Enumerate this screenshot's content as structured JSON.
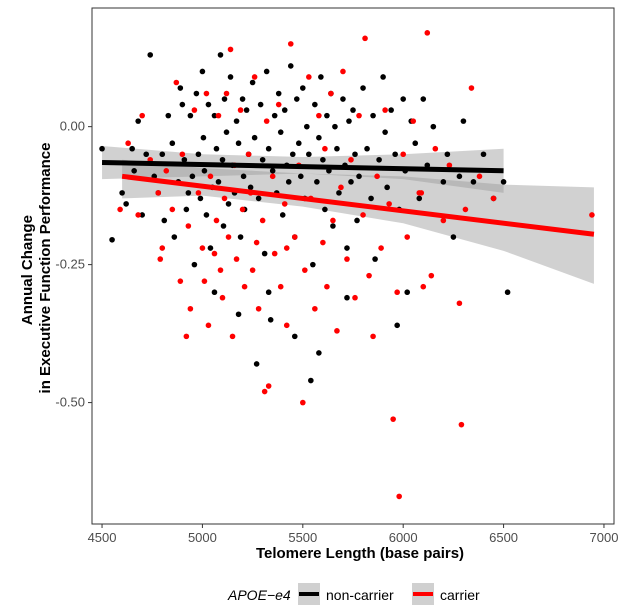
{
  "chart_data": {
    "type": "scatter",
    "xlabel": "Telomere Length (base pairs)",
    "ylabel_lines": [
      "Annual Change",
      "in Executive Function Performance"
    ],
    "xlim": [
      4450,
      7050
    ],
    "ylim": [
      -0.72,
      0.215
    ],
    "x_ticks": [
      4500,
      5000,
      5500,
      6000,
      6500,
      7000
    ],
    "x_tick_labels": [
      "4500",
      "5000",
      "5500",
      "6000",
      "6500",
      "7000"
    ],
    "y_ticks": [
      0.0,
      -0.25,
      -0.5
    ],
    "y_tick_labels": [
      "0.00",
      "-0.25",
      "-0.50"
    ],
    "grid": false,
    "legend": {
      "placement": "bottom",
      "title": "APOE−e4",
      "entries": [
        {
          "label": "non-carrier",
          "color": "#000000"
        },
        {
          "label": "carrier",
          "color": "#ff0000"
        }
      ]
    },
    "series": [
      {
        "name": "non-carrier",
        "color": "#000000",
        "fit": {
          "x": [
            4500,
            6500
          ],
          "y": [
            -0.065,
            -0.08
          ]
        },
        "ci": {
          "x": [
            4500,
            5000,
            5500,
            6000,
            6500
          ],
          "upper": [
            -0.035,
            -0.05,
            -0.055,
            -0.05,
            -0.04
          ],
          "lower": [
            -0.095,
            -0.09,
            -0.085,
            -0.095,
            -0.12
          ]
        },
        "points": [
          [
            4500,
            -0.04
          ],
          [
            4550,
            -0.205
          ],
          [
            4600,
            -0.12
          ],
          [
            4620,
            -0.14
          ],
          [
            4650,
            -0.04
          ],
          [
            4660,
            -0.08
          ],
          [
            4680,
            0.01
          ],
          [
            4700,
            -0.16
          ],
          [
            4720,
            -0.05
          ],
          [
            4740,
            0.13
          ],
          [
            4760,
            -0.09
          ],
          [
            4780,
            -0.12
          ],
          [
            4800,
            -0.05
          ],
          [
            4810,
            -0.17
          ],
          [
            4830,
            0.02
          ],
          [
            4850,
            -0.03
          ],
          [
            4860,
            -0.2
          ],
          [
            4880,
            -0.1
          ],
          [
            4890,
            0.07
          ],
          [
            4900,
            0.04
          ],
          [
            4910,
            -0.06
          ],
          [
            4920,
            -0.15
          ],
          [
            4930,
            -0.12
          ],
          [
            4940,
            0.02
          ],
          [
            4950,
            -0.09
          ],
          [
            4960,
            -0.25
          ],
          [
            4970,
            0.06
          ],
          [
            4980,
            -0.05
          ],
          [
            4990,
            -0.13
          ],
          [
            5000,
            0.1
          ],
          [
            5005,
            -0.02
          ],
          [
            5010,
            -0.08
          ],
          [
            5020,
            -0.16
          ],
          [
            5030,
            0.04
          ],
          [
            5040,
            -0.22
          ],
          [
            5050,
            -0.11
          ],
          [
            5060,
            0.02
          ],
          [
            5070,
            -0.04
          ],
          [
            5080,
            -0.1
          ],
          [
            5090,
            0.13
          ],
          [
            5100,
            -0.06
          ],
          [
            5105,
            -0.18
          ],
          [
            5110,
            0.05
          ],
          [
            5120,
            -0.01
          ],
          [
            5130,
            -0.14
          ],
          [
            5140,
            0.09
          ],
          [
            5150,
            -0.07
          ],
          [
            5160,
            -0.12
          ],
          [
            5170,
            0.01
          ],
          [
            5180,
            -0.03
          ],
          [
            5190,
            -0.2
          ],
          [
            5200,
            0.05
          ],
          [
            5205,
            -0.09
          ],
          [
            5210,
            -0.15
          ],
          [
            5220,
            0.03
          ],
          [
            5230,
            -0.05
          ],
          [
            5240,
            -0.11
          ],
          [
            5250,
            0.08
          ],
          [
            5260,
            -0.02
          ],
          [
            5270,
            -0.43
          ],
          [
            5280,
            -0.13
          ],
          [
            5290,
            0.04
          ],
          [
            5300,
            -0.06
          ],
          [
            5310,
            -0.23
          ],
          [
            5320,
            0.1
          ],
          [
            5330,
            -0.04
          ],
          [
            5340,
            -0.35
          ],
          [
            5350,
            -0.08
          ],
          [
            5360,
            0.02
          ],
          [
            5370,
            -0.12
          ],
          [
            5380,
            0.06
          ],
          [
            5390,
            -0.01
          ],
          [
            5400,
            -0.16
          ],
          [
            5410,
            0.03
          ],
          [
            5420,
            -0.07
          ],
          [
            5430,
            -0.1
          ],
          [
            5440,
            0.11
          ],
          [
            5450,
            -0.05
          ],
          [
            5460,
            -0.2
          ],
          [
            5470,
            0.05
          ],
          [
            5480,
            -0.03
          ],
          [
            5490,
            -0.09
          ],
          [
            5500,
            0.07
          ],
          [
            5510,
            -0.13
          ],
          [
            5520,
            0.0
          ],
          [
            5530,
            -0.05
          ],
          [
            5540,
            -0.46
          ],
          [
            5550,
            -0.25
          ],
          [
            5560,
            0.04
          ],
          [
            5570,
            -0.1
          ],
          [
            5580,
            -0.02
          ],
          [
            5590,
            0.09
          ],
          [
            5600,
            -0.06
          ],
          [
            5610,
            -0.15
          ],
          [
            5620,
            0.02
          ],
          [
            5630,
            -0.08
          ],
          [
            5640,
            0.06
          ],
          [
            5650,
            -0.18
          ],
          [
            5660,
            0.0
          ],
          [
            5670,
            -0.04
          ],
          [
            5680,
            -0.12
          ],
          [
            5700,
            0.05
          ],
          [
            5710,
            -0.07
          ],
          [
            5720,
            -0.22
          ],
          [
            5730,
            0.01
          ],
          [
            5740,
            -0.1
          ],
          [
            5750,
            0.03
          ],
          [
            5760,
            -0.05
          ],
          [
            5770,
            -0.17
          ],
          [
            5780,
            -0.09
          ],
          [
            5800,
            0.07
          ],
          [
            5820,
            -0.04
          ],
          [
            5840,
            -0.13
          ],
          [
            5850,
            0.02
          ],
          [
            5860,
            -0.24
          ],
          [
            5880,
            -0.06
          ],
          [
            5900,
            0.09
          ],
          [
            5910,
            -0.01
          ],
          [
            5920,
            -0.11
          ],
          [
            5940,
            0.03
          ],
          [
            5960,
            -0.05
          ],
          [
            5970,
            -0.36
          ],
          [
            5980,
            -0.15
          ],
          [
            6000,
            0.05
          ],
          [
            6010,
            -0.08
          ],
          [
            6020,
            -0.3
          ],
          [
            6040,
            0.01
          ],
          [
            6060,
            -0.03
          ],
          [
            6080,
            -0.13
          ],
          [
            6100,
            0.05
          ],
          [
            6120,
            -0.07
          ],
          [
            6150,
            0.0
          ],
          [
            6200,
            -0.1
          ],
          [
            6220,
            -0.05
          ],
          [
            6250,
            -0.2
          ],
          [
            6280,
            -0.09
          ],
          [
            6300,
            0.01
          ],
          [
            6350,
            -0.1
          ],
          [
            6400,
            -0.05
          ],
          [
            6450,
            -0.13
          ],
          [
            6500,
            -0.1
          ],
          [
            6520,
            -0.3
          ],
          [
            5060,
            -0.3
          ],
          [
            5180,
            -0.34
          ],
          [
            5330,
            -0.3
          ],
          [
            5460,
            -0.38
          ],
          [
            5580,
            -0.41
          ],
          [
            5720,
            -0.31
          ]
        ]
      },
      {
        "name": "carrier",
        "color": "#ff0000",
        "fit": {
          "x": [
            4600,
            6950
          ],
          "y": [
            -0.09,
            -0.195
          ]
        },
        "ci": {
          "x": [
            4600,
            5000,
            5500,
            6000,
            6500,
            6950
          ],
          "upper": [
            -0.06,
            -0.075,
            -0.085,
            -0.09,
            -0.105,
            -0.11
          ],
          "lower": [
            -0.13,
            -0.125,
            -0.145,
            -0.175,
            -0.225,
            -0.285
          ]
        },
        "points": [
          [
            4590,
            -0.15
          ],
          [
            4630,
            -0.03
          ],
          [
            4680,
            -0.16
          ],
          [
            4700,
            0.02
          ],
          [
            4740,
            -0.06
          ],
          [
            4780,
            -0.12
          ],
          [
            4790,
            -0.24
          ],
          [
            4800,
            -0.22
          ],
          [
            4820,
            -0.08
          ],
          [
            4850,
            -0.15
          ],
          [
            4870,
            0.08
          ],
          [
            4890,
            -0.28
          ],
          [
            4900,
            -0.05
          ],
          [
            4920,
            -0.38
          ],
          [
            4930,
            -0.18
          ],
          [
            4940,
            -0.33
          ],
          [
            4960,
            0.03
          ],
          [
            4980,
            -0.12
          ],
          [
            5000,
            -0.22
          ],
          [
            5010,
            -0.28
          ],
          [
            5020,
            0.06
          ],
          [
            5030,
            -0.36
          ],
          [
            5040,
            -0.09
          ],
          [
            5060,
            -0.23
          ],
          [
            5070,
            -0.17
          ],
          [
            5080,
            0.02
          ],
          [
            5090,
            -0.26
          ],
          [
            5100,
            -0.31
          ],
          [
            5110,
            -0.13
          ],
          [
            5120,
            0.06
          ],
          [
            5130,
            -0.2
          ],
          [
            5140,
            0.14
          ],
          [
            5150,
            -0.38
          ],
          [
            5160,
            -0.07
          ],
          [
            5170,
            -0.24
          ],
          [
            5190,
            0.03
          ],
          [
            5200,
            -0.15
          ],
          [
            5210,
            -0.29
          ],
          [
            5230,
            -0.05
          ],
          [
            5240,
            -0.12
          ],
          [
            5250,
            -0.26
          ],
          [
            5260,
            0.09
          ],
          [
            5270,
            -0.21
          ],
          [
            5280,
            -0.33
          ],
          [
            5300,
            -0.17
          ],
          [
            5310,
            -0.48
          ],
          [
            5320,
            0.01
          ],
          [
            5330,
            -0.47
          ],
          [
            5350,
            -0.09
          ],
          [
            5360,
            -0.23
          ],
          [
            5380,
            0.04
          ],
          [
            5390,
            -0.29
          ],
          [
            5410,
            -0.14
          ],
          [
            5420,
            -0.36
          ],
          [
            5440,
            0.15
          ],
          [
            5460,
            -0.2
          ],
          [
            5480,
            -0.07
          ],
          [
            5500,
            -0.5
          ],
          [
            5510,
            -0.26
          ],
          [
            5530,
            0.09
          ],
          [
            5540,
            -0.13
          ],
          [
            5560,
            -0.33
          ],
          [
            5580,
            0.02
          ],
          [
            5600,
            -0.21
          ],
          [
            5610,
            -0.04
          ],
          [
            5620,
            -0.29
          ],
          [
            5640,
            0.06
          ],
          [
            5650,
            -0.17
          ],
          [
            5670,
            -0.37
          ],
          [
            5690,
            -0.11
          ],
          [
            5700,
            0.1
          ],
          [
            5720,
            -0.24
          ],
          [
            5740,
            -0.06
          ],
          [
            5760,
            -0.31
          ],
          [
            5780,
            0.02
          ],
          [
            5800,
            -0.16
          ],
          [
            5810,
            0.16
          ],
          [
            5830,
            -0.27
          ],
          [
            5850,
            -0.38
          ],
          [
            5870,
            -0.09
          ],
          [
            5890,
            -0.22
          ],
          [
            5910,
            0.03
          ],
          [
            5930,
            -0.14
          ],
          [
            5950,
            -0.53
          ],
          [
            5970,
            -0.3
          ],
          [
            5980,
            -0.67
          ],
          [
            6000,
            -0.05
          ],
          [
            6020,
            -0.2
          ],
          [
            6050,
            0.01
          ],
          [
            6080,
            -0.12
          ],
          [
            6100,
            -0.29
          ],
          [
            6120,
            0.17
          ],
          [
            6140,
            -0.27
          ],
          [
            6160,
            -0.04
          ],
          [
            6200,
            -0.17
          ],
          [
            6230,
            -0.07
          ],
          [
            6280,
            -0.32
          ],
          [
            6290,
            -0.54
          ],
          [
            6310,
            -0.15
          ],
          [
            6340,
            0.07
          ],
          [
            6380,
            -0.09
          ],
          [
            6450,
            -0.13
          ],
          [
            6940,
            -0.16
          ],
          [
            6090,
            -0.12
          ],
          [
            5420,
            -0.22
          ]
        ]
      }
    ]
  }
}
